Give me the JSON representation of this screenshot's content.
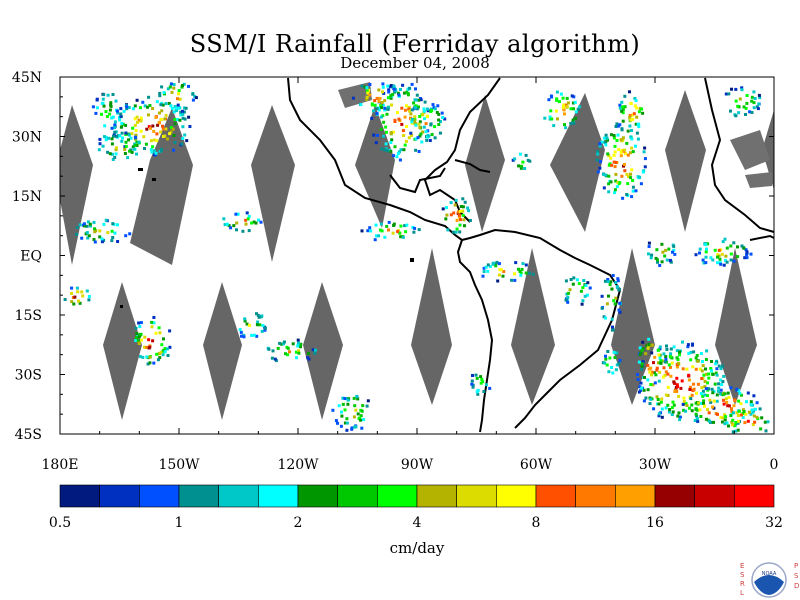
{
  "title": "SSM/I Rainfall (Ferriday algorithm)",
  "date": "December 04, 2008",
  "map": {
    "lon_range": [
      -180,
      0
    ],
    "lat_range": [
      -45,
      45
    ],
    "lat_labels": [
      "45N",
      "30N",
      "15N",
      "EQ",
      "15S",
      "30S",
      "45S"
    ],
    "lon_labels": [
      "180E",
      "150W",
      "120W",
      "90W",
      "60W",
      "30W",
      "0"
    ],
    "colors": {
      "frame": "#000000",
      "no_data_swath": "#666666",
      "coastline": "#000000",
      "land_gray": "#707070"
    }
  },
  "colorbar": {
    "unit": "cm/day",
    "tick_labels": [
      "0.5",
      "1",
      "2",
      "4",
      "8",
      "16",
      "32"
    ],
    "colors": [
      "#001a80",
      "#0030c0",
      "#0050ff",
      "#009090",
      "#00c8c8",
      "#00ffff",
      "#009600",
      "#00c800",
      "#00ff00",
      "#b4b400",
      "#dcdc00",
      "#ffff00",
      "#ff5000",
      "#ff7800",
      "#ffa000",
      "#960000",
      "#c80000",
      "#ff0000"
    ]
  },
  "logo": {
    "left_letters": "ESRL",
    "right_letters": "PSD",
    "emblem_text": "NOAA"
  }
}
